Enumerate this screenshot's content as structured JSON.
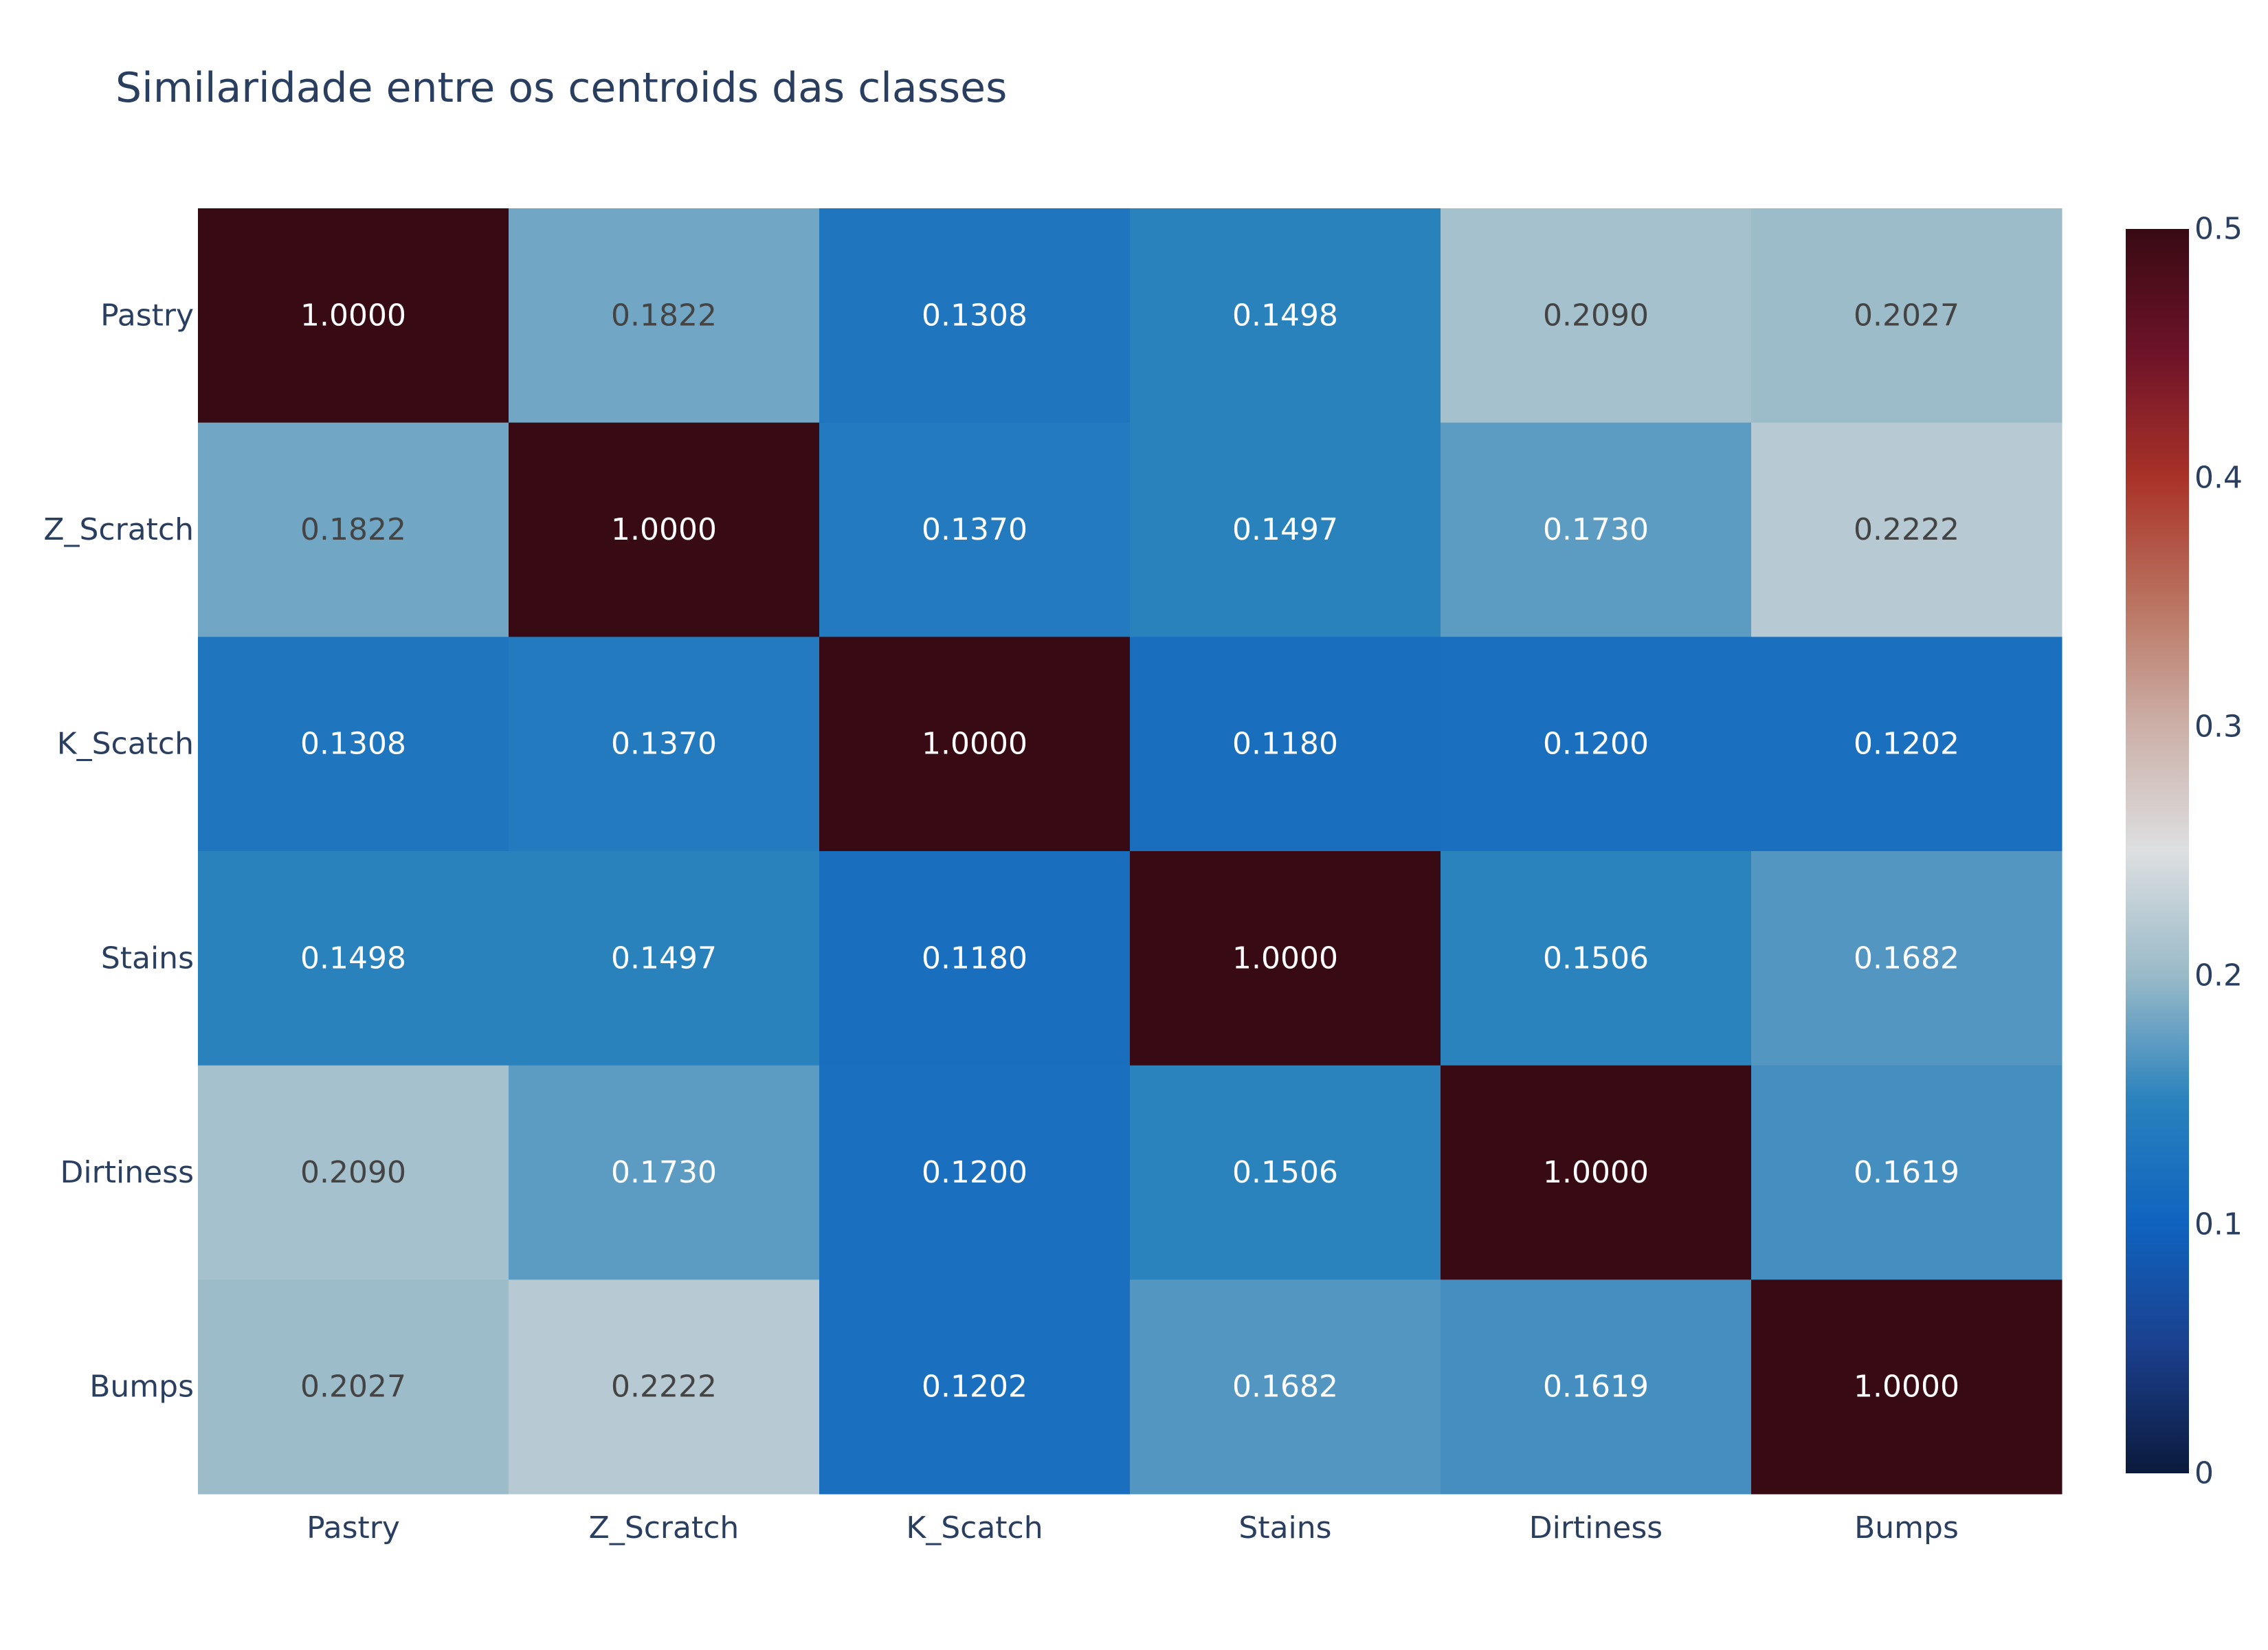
{
  "chart_data": {
    "type": "heatmap",
    "title": "Similaridade entre os centroids das classes",
    "x_categories": [
      "Pastry",
      "Z_Scratch",
      "K_Scatch",
      "Stains",
      "Dirtiness",
      "Bumps"
    ],
    "y_categories": [
      "Pastry",
      "Z_Scratch",
      "K_Scatch",
      "Stains",
      "Dirtiness",
      "Bumps"
    ],
    "z": [
      [
        1.0,
        0.1822,
        0.1308,
        0.1498,
        0.209,
        0.2027
      ],
      [
        0.1822,
        1.0,
        0.137,
        0.1497,
        0.173,
        0.2222
      ],
      [
        0.1308,
        0.137,
        1.0,
        0.118,
        0.12,
        0.1202
      ],
      [
        0.1498,
        0.1497,
        0.118,
        1.0,
        0.1506,
        0.1682
      ],
      [
        0.209,
        0.173,
        0.12,
        0.1506,
        1.0,
        0.1619
      ],
      [
        0.2027,
        0.2222,
        0.1202,
        0.1682,
        0.1619,
        1.0
      ]
    ],
    "text": [
      [
        "1.0000",
        "0.1822",
        "0.1308",
        "0.1498",
        "0.2090",
        "0.2027"
      ],
      [
        "0.1822",
        "1.0000",
        "0.1370",
        "0.1497",
        "0.1730",
        "0.2222"
      ],
      [
        "0.1308",
        "0.1370",
        "1.0000",
        "0.1180",
        "0.1200",
        "0.1202"
      ],
      [
        "0.1498",
        "0.1497",
        "0.1180",
        "1.0000",
        "0.1506",
        "0.1682"
      ],
      [
        "0.2090",
        "0.1730",
        "0.1200",
        "0.1506",
        "1.0000",
        "0.1619"
      ],
      [
        "0.2027",
        "0.2222",
        "0.1202",
        "0.1682",
        "0.1619",
        "1.0000"
      ]
    ],
    "zmin": 0,
    "zmax": 0.5,
    "colorscale": [
      [
        0.0,
        "#0b1a3c"
      ],
      [
        0.1,
        "#1b3f8c"
      ],
      [
        0.2,
        "#0f63bf"
      ],
      [
        0.3,
        "#2a82bd"
      ],
      [
        0.4,
        "#99bac8"
      ],
      [
        0.5,
        "#dddfe1"
      ],
      [
        0.6,
        "#ccb0a8"
      ],
      [
        0.7,
        "#ba7360"
      ],
      [
        0.8,
        "#a93228"
      ],
      [
        0.9,
        "#6e1328"
      ],
      [
        1.0,
        "#380a13"
      ]
    ],
    "colorbar_ticks": [
      "0",
      "0.1",
      "0.2",
      "0.3",
      "0.4",
      "0.5"
    ],
    "colorbar_tick_values": [
      0,
      0.1,
      0.2,
      0.3,
      0.4,
      0.5
    ],
    "dark_text_color": "#444444",
    "light_text_color": "#ffffff"
  }
}
